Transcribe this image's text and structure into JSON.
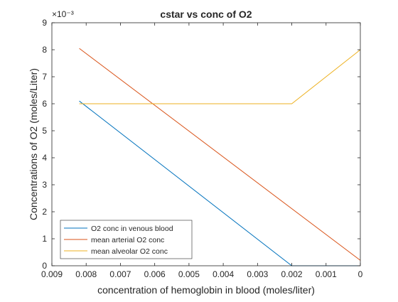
{
  "chart_data": {
    "type": "line",
    "title": "cstar vs conc of O2",
    "xlabel": "concentration of hemoglobin in blood (moles/liter)",
    "ylabel": "Concentrations of O2 (moles/Liter)",
    "xlim": [
      0,
      0.009
    ],
    "x_reversed": true,
    "ylim": [
      0,
      9
    ],
    "y_exponent_label": "×10⁻³",
    "y_scale_factor": 0.001,
    "x_ticks": [
      0.009,
      0.008,
      0.007,
      0.006,
      0.005,
      0.004,
      0.003,
      0.002,
      0.001,
      0
    ],
    "x_tick_labels": [
      "0.009",
      "0.008",
      "0.007",
      "0.006",
      "0.005",
      "0.004",
      "0.003",
      "0.002",
      "0.001",
      "0"
    ],
    "y_ticks": [
      0,
      1,
      2,
      3,
      4,
      5,
      6,
      7,
      8,
      9
    ],
    "y_tick_labels": [
      "0",
      "1",
      "2",
      "3",
      "4",
      "5",
      "6",
      "7",
      "8",
      "9"
    ],
    "grid": false,
    "legend_position": "bottom-left",
    "series": [
      {
        "name": "O2 conc in venous blood",
        "color": "#0072BD",
        "x": [
          0.0082,
          0.002,
          0
        ],
        "y": [
          6.1,
          0,
          0
        ]
      },
      {
        "name": "mean arterial O2 conc",
        "color": "#D95319",
        "x": [
          0.0082,
          0
        ],
        "y": [
          8.05,
          0.2
        ]
      },
      {
        "name": "mean alveolar O2 conc",
        "color": "#EDB120",
        "x": [
          0.0082,
          0.002,
          0
        ],
        "y": [
          6.0,
          6.0,
          8.0
        ]
      }
    ]
  }
}
